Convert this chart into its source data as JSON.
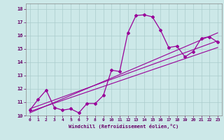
{
  "xlabel": "Windchill (Refroidissement éolien,°C)",
  "background_color": "#cce8e8",
  "line_color": "#990099",
  "xlim": [
    -0.5,
    23.5
  ],
  "ylim": [
    10,
    18.4
  ],
  "xticks": [
    0,
    1,
    2,
    3,
    4,
    5,
    6,
    7,
    8,
    9,
    10,
    11,
    12,
    13,
    14,
    15,
    16,
    17,
    18,
    19,
    20,
    21,
    22,
    23
  ],
  "yticks": [
    10,
    11,
    12,
    13,
    14,
    15,
    16,
    17,
    18
  ],
  "curve1_x": [
    0,
    1,
    2,
    3,
    4,
    5,
    6,
    7,
    8,
    9,
    10,
    11,
    12,
    13,
    14,
    15,
    16,
    17,
    18,
    19,
    20,
    21,
    22,
    23
  ],
  "curve1_y": [
    10.4,
    11.2,
    11.9,
    10.6,
    10.4,
    10.5,
    10.2,
    10.9,
    10.9,
    11.5,
    13.4,
    13.3,
    16.2,
    17.5,
    17.55,
    17.4,
    16.4,
    15.1,
    15.2,
    14.4,
    14.8,
    15.8,
    15.9,
    15.5
  ],
  "line1_x": [
    0,
    23
  ],
  "line1_y": [
    10.5,
    15.6
  ],
  "line2_x": [
    0,
    23
  ],
  "line2_y": [
    10.3,
    15.1
  ],
  "line3_x": [
    0,
    23
  ],
  "line3_y": [
    10.2,
    16.2
  ]
}
